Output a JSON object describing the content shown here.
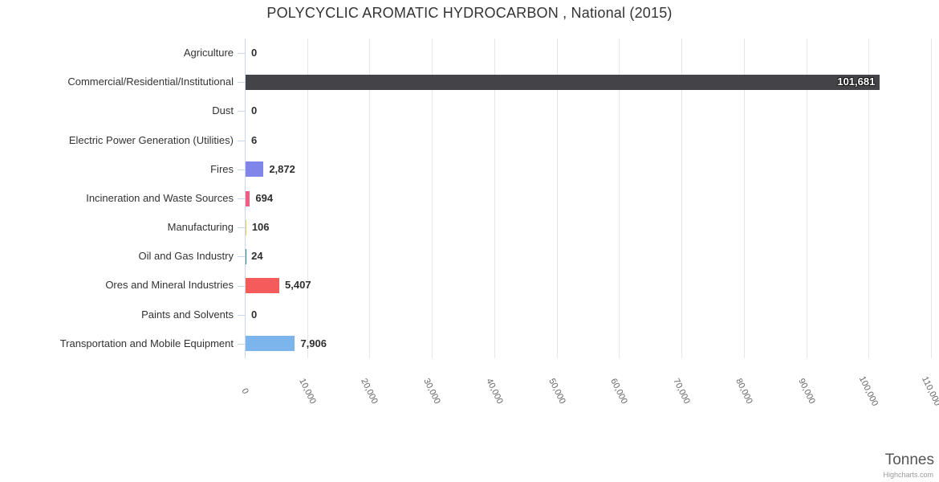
{
  "title": "POLYCYCLIC AROMATIC HYDROCARBON , National (2015)",
  "credits": "Highcharts.com",
  "chart_data": {
    "type": "bar",
    "orientation": "horizontal",
    "title": "POLYCYCLIC AROMATIC HYDROCARBON , National (2015)",
    "categories": [
      "Agriculture",
      "Commercial/Residential/Institutional",
      "Dust",
      "Electric Power Generation (Utilities)",
      "Fires",
      "Incineration and Waste Sources",
      "Manufacturing",
      "Oil and Gas Industry",
      "Ores and Mineral Industries",
      "Paints and Solvents",
      "Transportation and Mobile Equipment"
    ],
    "values": [
      0,
      101681,
      0,
      6,
      2872,
      694,
      106,
      24,
      5407,
      0,
      7906
    ],
    "value_labels": [
      "0",
      "101,681",
      "0",
      "6",
      "2,872",
      "694",
      "106",
      "24",
      "5,407",
      "0",
      "7,906"
    ],
    "bar_colors": [
      "#7cb5ec",
      "#434348",
      "#90ed7d",
      "#f7a35c",
      "#8085e9",
      "#f15c80",
      "#e4d354",
      "#2b908f",
      "#f45b5b",
      "#91e8e1",
      "#7cb5ec"
    ],
    "xlabel": "Tonnes",
    "ylabel": "",
    "xlim": [
      0,
      110000
    ],
    "x_ticks": [
      "0",
      "10,000",
      "20,000",
      "30,000",
      "40,000",
      "50,000",
      "60,000",
      "70,000",
      "80,000",
      "90,000",
      "100,000",
      "110,000"
    ],
    "grid": true,
    "legend": false,
    "colors": {
      "grid": "#e6e6e6",
      "axis": "#ccd6eb",
      "title_text": "#333333",
      "category_text": "#333333",
      "tick_text": "#666666",
      "value_text": "#2f2f2f",
      "value_text_inside": "#ffffff"
    }
  }
}
